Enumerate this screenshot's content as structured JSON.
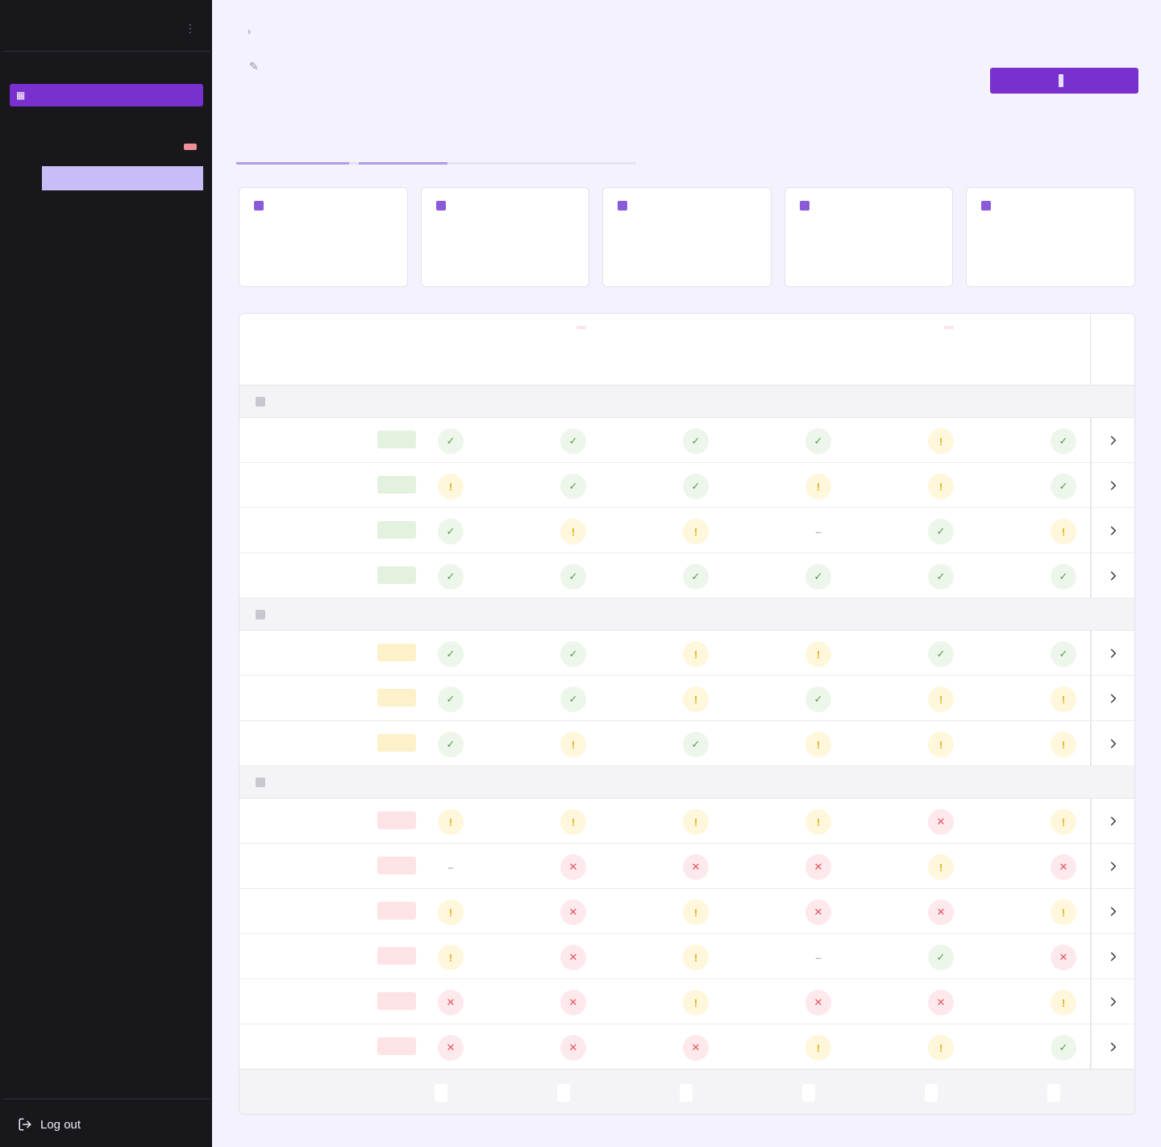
{
  "sidebar": {
    "brand": "",
    "section_label": "",
    "active_item": {
      "icon": "▦",
      "label": ""
    },
    "sub_items": [
      {
        "label": ""
      },
      {
        "label": "",
        "badge": ""
      },
      {
        "label": ""
      },
      {
        "label": ""
      },
      {
        "label": ""
      }
    ],
    "extra_item": "",
    "logout_label": "Log out"
  },
  "header": {
    "breadcrumb_parent": "",
    "breadcrumb_current": "",
    "title": "",
    "description": "",
    "primary_button": ""
  },
  "tabs": [
    {
      "label": "",
      "state": "done"
    },
    {
      "label": "",
      "state": "current"
    },
    {
      "label": "",
      "state": "todo"
    },
    {
      "label": "",
      "state": "todo"
    }
  ],
  "stats": [
    {
      "label": "",
      "value": "",
      "sub": ""
    },
    {
      "label": "",
      "value": "",
      "sub": ""
    },
    {
      "label": "",
      "value": "",
      "sub": ""
    },
    {
      "label": "",
      "value": "",
      "sub": ""
    },
    {
      "label": "",
      "value": "",
      "sub": ""
    }
  ],
  "table": {
    "col_name": "",
    "col_status": "",
    "columns": [
      {
        "h1": "",
        "h2": "",
        "h3": "",
        "alert": false
      },
      {
        "h1": "",
        "h2": "",
        "flag": "",
        "alert": true
      },
      {
        "h1": "",
        "h2": "",
        "h3": "",
        "alert": false
      },
      {
        "h1": "",
        "h2": "",
        "h3": "",
        "alert": false
      },
      {
        "h1": "",
        "h2": "",
        "flag": "",
        "alert": true
      },
      {
        "h1": "",
        "h2": "",
        "h3": "",
        "alert": false
      }
    ],
    "groups": [
      {
        "label": "",
        "rows": [
          {
            "name": "",
            "status": "ok",
            "cells": [
              "ok",
              "ok",
              "ok",
              "ok",
              "warn",
              "ok"
            ]
          },
          {
            "name": "",
            "status": "ok",
            "cells": [
              "warn",
              "ok",
              "ok",
              "warn",
              "warn",
              "ok"
            ]
          },
          {
            "name": "",
            "status": "ok",
            "cells": [
              "ok",
              "warn",
              "warn",
              "none",
              "ok",
              "warn"
            ]
          },
          {
            "name": "",
            "status": "ok",
            "cells": [
              "ok",
              "ok",
              "ok",
              "ok",
              "ok",
              "ok"
            ]
          }
        ]
      },
      {
        "label": "",
        "rows": [
          {
            "name": "",
            "status": "warn",
            "cells": [
              "ok",
              "ok",
              "warn",
              "warn",
              "ok",
              "ok"
            ]
          },
          {
            "name": "",
            "status": "warn",
            "cells": [
              "ok",
              "ok",
              "warn",
              "ok",
              "warn",
              "warn"
            ]
          },
          {
            "name": "",
            "status": "warn",
            "cells": [
              "ok",
              "warn",
              "ok",
              "warn",
              "warn",
              "warn"
            ]
          }
        ]
      },
      {
        "label": "",
        "rows": [
          {
            "name": "",
            "status": "bad",
            "cells": [
              "warn",
              "warn",
              "warn",
              "warn",
              "bad",
              "warn"
            ]
          },
          {
            "name": "",
            "status": "bad",
            "cells": [
              "none",
              "bad",
              "bad",
              "bad",
              "warn",
              "bad"
            ]
          },
          {
            "name": "",
            "status": "bad",
            "cells": [
              "warn",
              "bad",
              "warn",
              "bad",
              "bad",
              "warn"
            ]
          },
          {
            "name": "",
            "status": "bad",
            "cells": [
              "warn",
              "bad",
              "warn",
              "none",
              "ok",
              "bad"
            ]
          },
          {
            "name": "",
            "status": "bad",
            "cells": [
              "bad",
              "bad",
              "warn",
              "bad",
              "bad",
              "warn"
            ]
          },
          {
            "name": "",
            "status": "bad",
            "cells": [
              "bad",
              "bad",
              "bad",
              "warn",
              "warn",
              "ok"
            ]
          }
        ]
      }
    ],
    "footer_label": "",
    "footer_totals": [
      {
        "text": "",
        "state": "ok"
      },
      {
        "text": "",
        "state": "bad"
      },
      {
        "text": "",
        "state": "warn"
      },
      {
        "text": "",
        "state": "warn"
      },
      {
        "text": "",
        "state": "bad"
      },
      {
        "text": "",
        "state": "ok"
      }
    ]
  },
  "colors": {
    "accent": "#7a2fcf",
    "sidebar_bg": "#18171c",
    "ok": "#5a9a48",
    "warn": "#e0b21f",
    "bad": "#e05460"
  }
}
